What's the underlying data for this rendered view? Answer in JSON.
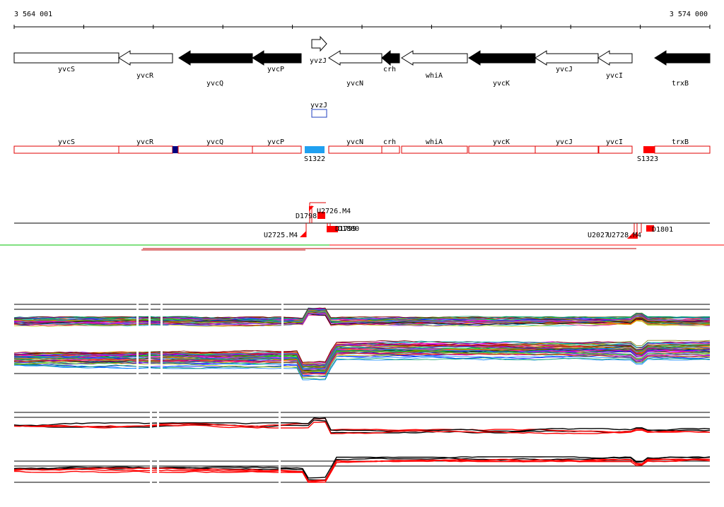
{
  "coordinates": {
    "start": "3 564 001",
    "end": "3 574 000"
  },
  "genes_track": [
    {
      "name": "yvcS",
      "strand": "+",
      "fill": "white"
    },
    {
      "name": "yvcR",
      "strand": "-",
      "fill": "white"
    },
    {
      "name": "yvcQ",
      "strand": "-",
      "fill": "black"
    },
    {
      "name": "yvcP",
      "strand": "-",
      "fill": "black"
    },
    {
      "name": "yvzJ",
      "strand": "+",
      "fill": "white"
    },
    {
      "name": "yvcN",
      "strand": "-",
      "fill": "white"
    },
    {
      "name": "crh",
      "strand": "-",
      "fill": "black"
    },
    {
      "name": "whiA",
      "strand": "-",
      "fill": "white"
    },
    {
      "name": "yvcK",
      "strand": "-",
      "fill": "black"
    },
    {
      "name": "yvcJ",
      "strand": "-",
      "fill": "white"
    },
    {
      "name": "yvcI",
      "strand": "-",
      "fill": "white"
    },
    {
      "name": "trxB",
      "strand": "-",
      "fill": "black"
    }
  ],
  "small_feature": {
    "label": "yvzJ"
  },
  "segments_track": [
    "yvcS",
    "yvcR",
    "yvcQ",
    "yvcP",
    "yvcN",
    "crh",
    "whiA",
    "yvcK",
    "yvcJ",
    "yvcI",
    "trxB"
  ],
  "segment_markers": {
    "s1": "S1322",
    "s2": "S1323"
  },
  "marker_labels": {
    "u2726": "U2726.M4",
    "d1798": "D1798",
    "u2725": "U2725.M4",
    "d1799": "D1799",
    "d1800": "D1800",
    "u2027": "U2027",
    "u2728": "U2728.M4",
    "d1801": "D1801"
  },
  "colors": {
    "black": "#000000",
    "red": "#ff0000",
    "green": "#00c000",
    "navy": "#000080",
    "blue": "#2040c0",
    "lightblue": "#20a0f0"
  }
}
